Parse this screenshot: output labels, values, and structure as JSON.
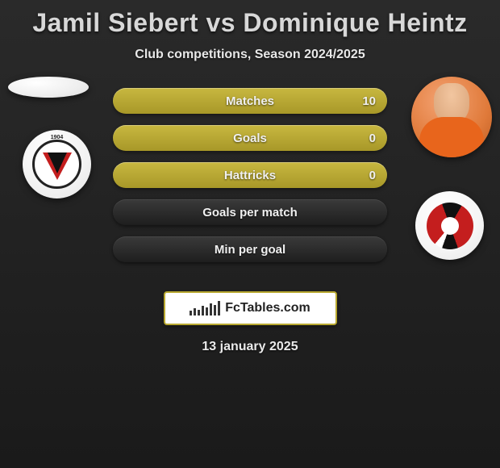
{
  "title": "Jamil Siebert vs Dominique Heintz",
  "subtitle": "Club competitions, Season 2024/2025",
  "date": "13 january 2025",
  "brand": "FcTables.com",
  "left_logo_year": "1904",
  "stats": [
    {
      "label": "Matches",
      "value": "10",
      "show_value": true,
      "dark": false
    },
    {
      "label": "Goals",
      "value": "0",
      "show_value": true,
      "dark": false
    },
    {
      "label": "Hattricks",
      "value": "0",
      "show_value": true,
      "dark": false
    },
    {
      "label": "Goals per match",
      "value": "",
      "show_value": false,
      "dark": true
    },
    {
      "label": "Min per goal",
      "value": "",
      "show_value": false,
      "dark": true
    }
  ],
  "colors": {
    "bar_gold_top": "#c8b840",
    "bar_gold_bottom": "#a89828",
    "bar_dark_top": "#3a3a3a",
    "bar_dark_bottom": "#1e1e1e",
    "bg_top": "#2a2a2a",
    "bg_bottom": "#1a1a1a",
    "title_color": "#d8d8d8",
    "text_color": "#eaeaea",
    "brand_border": "#b8a830",
    "logo_red": "#c41e1e",
    "logo_black": "#111111"
  },
  "brand_chart_heights": [
    6,
    9,
    7,
    12,
    10,
    15,
    13,
    18
  ]
}
